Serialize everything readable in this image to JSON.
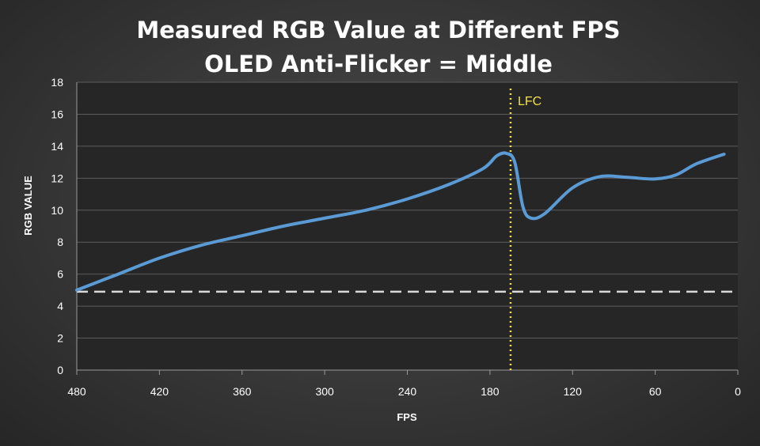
{
  "chart_data": {
    "type": "line",
    "title": "Measured RGB Value at Different FPS",
    "subtitle": "OLED Anti-Flicker = Middle",
    "xlabel": "FPS",
    "ylabel": "RGB VALUE",
    "xlim": [
      480,
      0
    ],
    "ylim": [
      0,
      18
    ],
    "x_ticks": [
      480,
      420,
      360,
      300,
      240,
      180,
      120,
      60,
      0
    ],
    "y_ticks": [
      0,
      2,
      4,
      6,
      8,
      10,
      12,
      14,
      16,
      18
    ],
    "grid": "horizontal",
    "series": [
      {
        "color": "#5b9bd5",
        "points": [
          [
            480,
            5.0
          ],
          [
            450,
            6.0
          ],
          [
            420,
            7.0
          ],
          [
            390,
            7.8
          ],
          [
            360,
            8.4
          ],
          [
            330,
            9.0
          ],
          [
            300,
            9.5
          ],
          [
            270,
            10.0
          ],
          [
            240,
            10.7
          ],
          [
            210,
            11.6
          ],
          [
            185,
            12.6
          ],
          [
            175,
            13.4
          ],
          [
            168,
            13.55
          ],
          [
            162,
            13.0
          ],
          [
            156,
            10.2
          ],
          [
            150,
            9.5
          ],
          [
            140,
            9.8
          ],
          [
            120,
            11.4
          ],
          [
            100,
            12.1
          ],
          [
            80,
            12.05
          ],
          [
            60,
            11.95
          ],
          [
            45,
            12.2
          ],
          [
            30,
            12.9
          ],
          [
            10,
            13.5
          ]
        ]
      }
    ],
    "reference_lines": [
      {
        "orientation": "horizontal",
        "y": 4.9,
        "style": "dashed",
        "color": "#d9d9d9"
      },
      {
        "orientation": "vertical",
        "x": 165,
        "style": "dotted",
        "color": "#f0e04a",
        "label": "LFC"
      }
    ]
  }
}
